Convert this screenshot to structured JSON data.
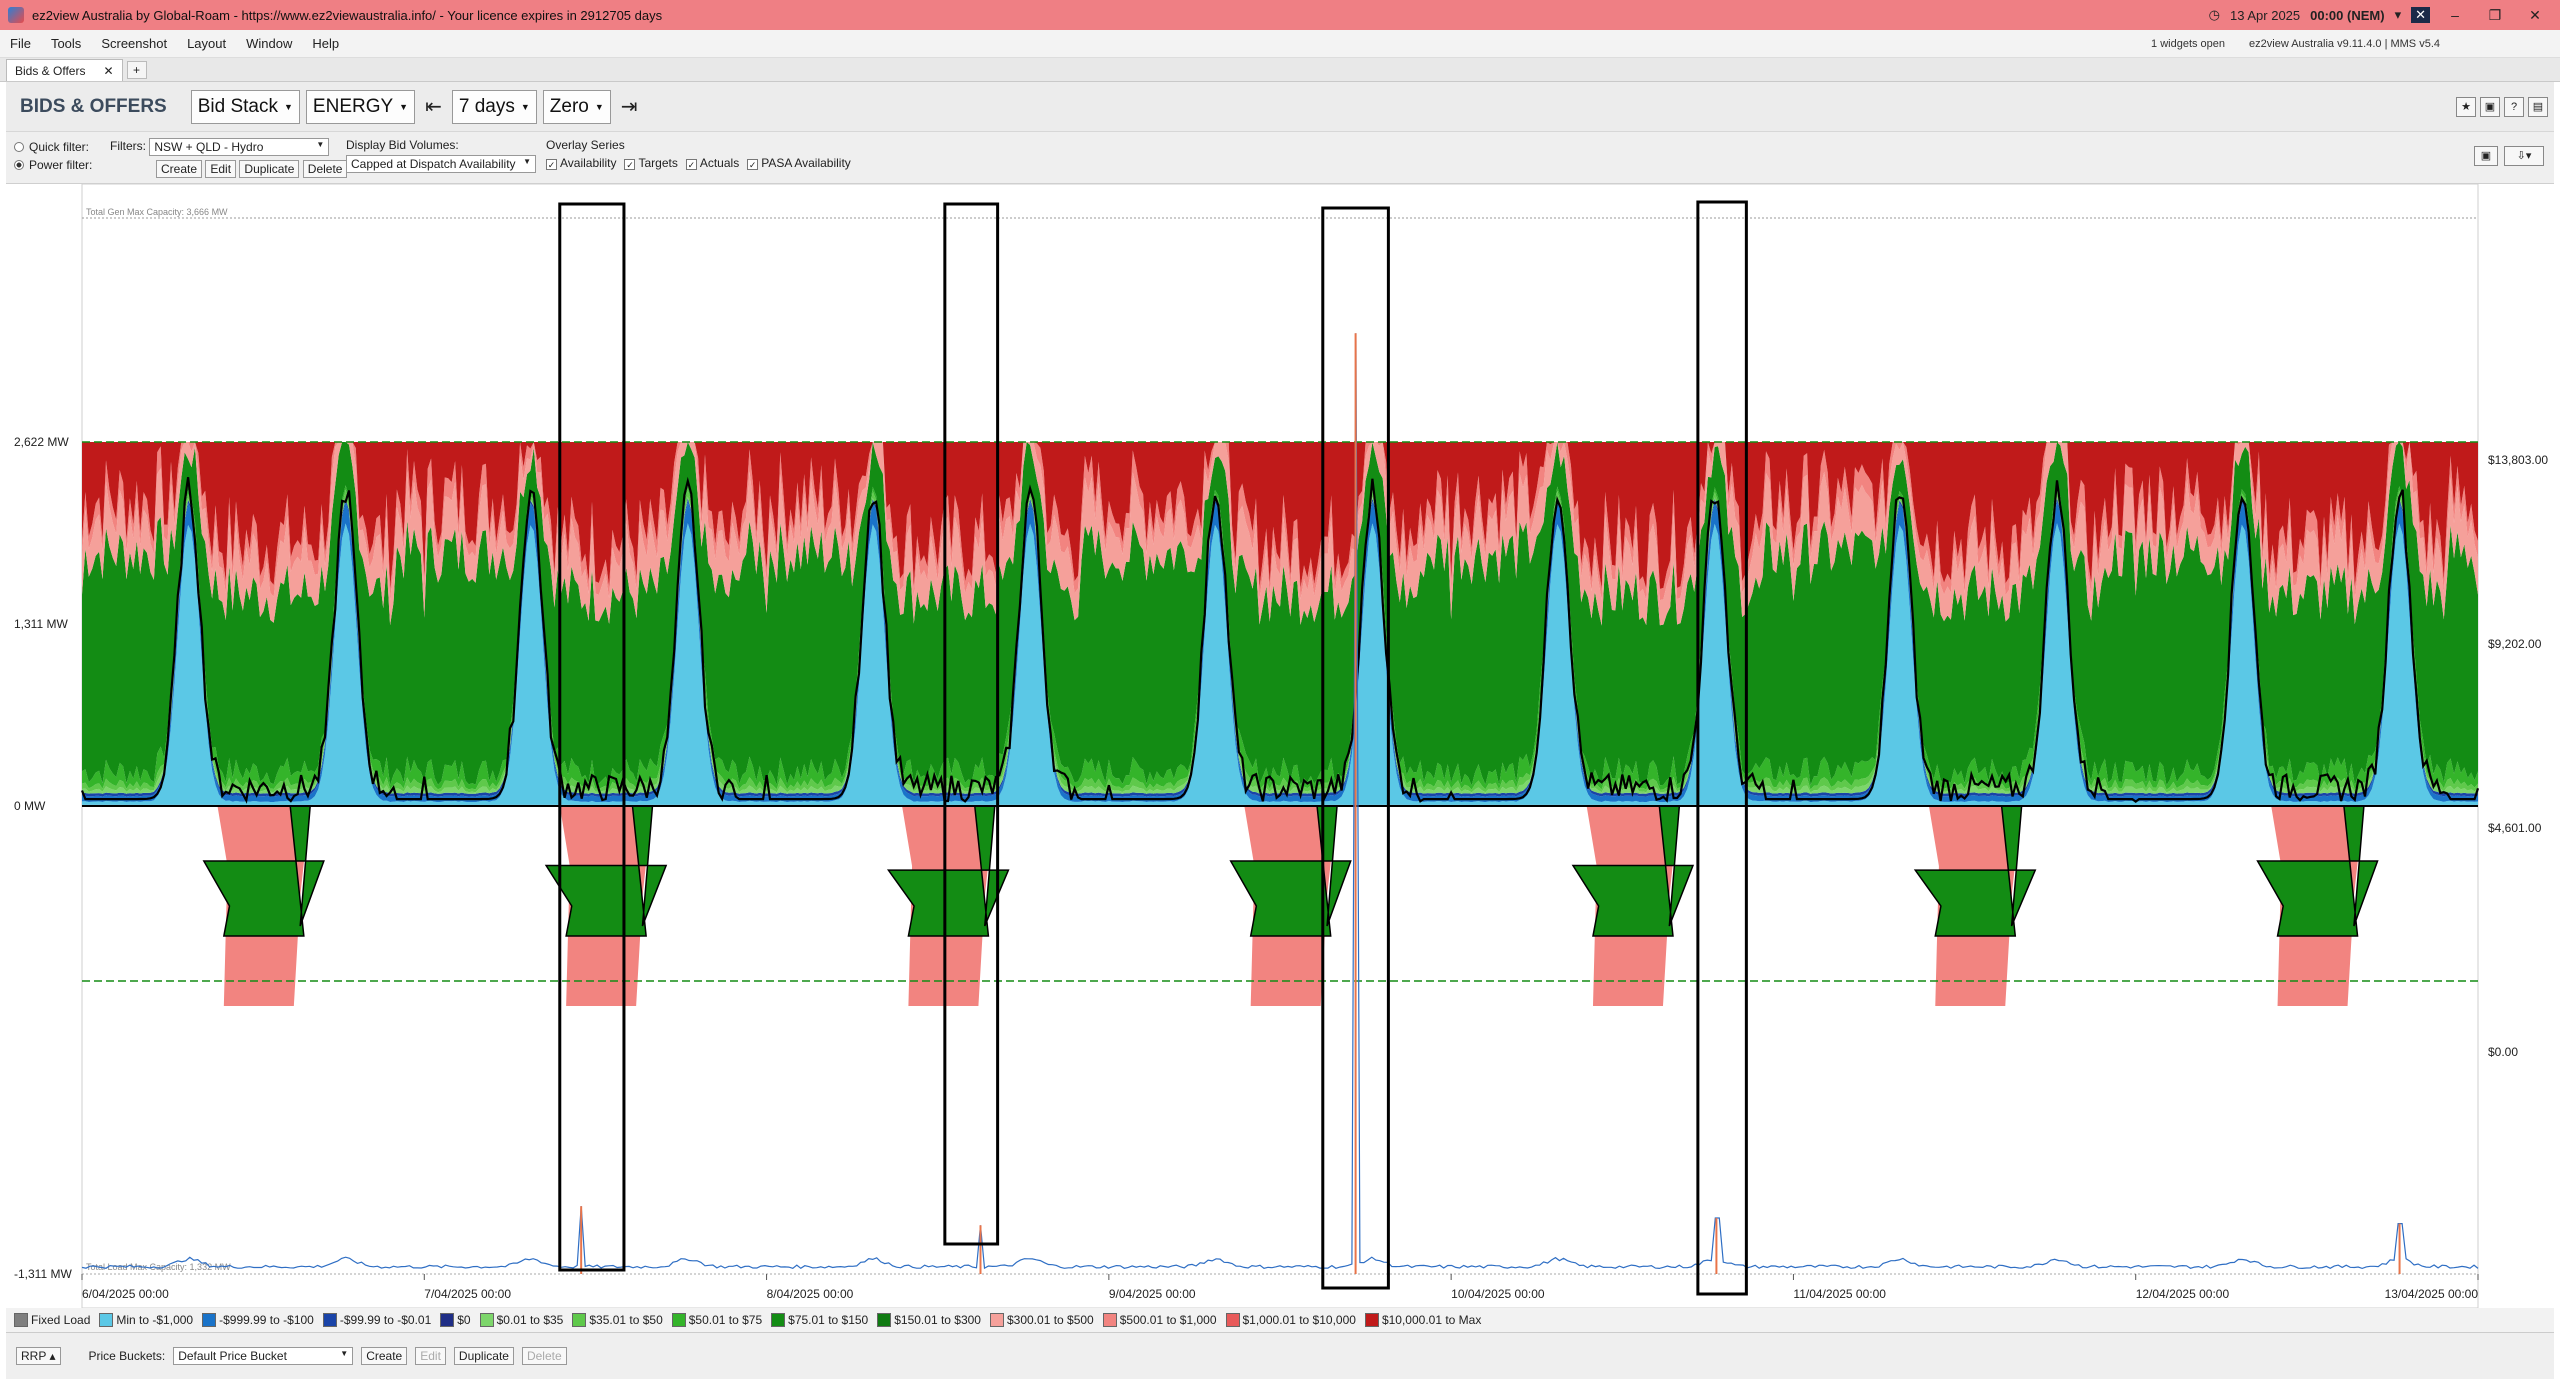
{
  "window": {
    "title": "ez2view Australia by Global-Roam - https://www.ez2viewaustralia.info/ - Your licence expires in 2912705 days",
    "clock_date": "13 Apr 2025",
    "clock_time": "00:00 (NEM)",
    "minimize": "–",
    "maximize": "❐",
    "close": "✕"
  },
  "menu": {
    "items": [
      "File",
      "Tools",
      "Screenshot",
      "Layout",
      "Window",
      "Help"
    ],
    "widgets_open": "1 widgets open",
    "version": "ez2view Australia v9.11.4.0 | MMS v5.4"
  },
  "tabs": {
    "active": "Bids & Offers",
    "add": "+",
    "close": "✕"
  },
  "toolbar": {
    "title": "BIDS & OFFERS",
    "view": "Bid Stack",
    "market": "ENERGY",
    "range": "7 days",
    "baseline": "Zero",
    "prev_glyph": "⇤",
    "next_glyph": "⇥"
  },
  "filters": {
    "quick_filter": "Quick filter:",
    "power_filter": "Power filter:",
    "filters_label": "Filters:",
    "filter_value": "NSW + QLD - Hydro",
    "create": "Create",
    "edit": "Edit",
    "duplicate": "Duplicate",
    "delete": "Delete",
    "display_label": "Display Bid Volumes:",
    "display_value": "Capped at Dispatch Availability",
    "overlay_label": "Overlay Series",
    "overlay": [
      "Availability",
      "Targets",
      "Actuals",
      "PASA Availability"
    ]
  },
  "colors": {
    "fixed": "#7f7f7f",
    "min_1000": "#5bc8e6",
    "n999": "#1a73c9",
    "n99": "#1a44a8",
    "zero": "#1f2e86",
    "p35": "#7dd66b",
    "p50": "#5fc94b",
    "p75": "#34b42a",
    "p150": "#138c14",
    "p300": "#0f7a12",
    "p500": "#f5a09a",
    "p1000": "#f28480",
    "p10000": "#e85a5a",
    "max": "#c01a1a",
    "actual": "#000000",
    "rrp": "#2e6ec4"
  },
  "chart_data": {
    "type": "area",
    "y_left_ticks": [
      "2,622 MW",
      "1,311 MW",
      "0 MW",
      "-1,311 MW"
    ],
    "y_right_ticks": [
      "$13,803.00",
      "$9,202.00",
      "$4,601.00",
      "$0.00"
    ],
    "x_ticks": [
      "6/04/2025 00:00",
      "7/04/2025 00:00",
      "8/04/2025 00:00",
      "9/04/2025 00:00",
      "10/04/2025 00:00",
      "11/04/2025 00:00",
      "12/04/2025 00:00",
      "13/04/2025 00:00"
    ],
    "total_gen_label": "Total Gen Max Capacity: 3,666 MW",
    "total_load_label": "Total Load Max Capacity: 1,332 MW",
    "ylim_mw": [
      -1311,
      3800
    ],
    "ylim_price": [
      0,
      17800
    ],
    "days": 7,
    "availability_mw": 2622,
    "daily_peak_hours": [
      14.2,
      6.8,
      7.7,
      18.2,
      7.8,
      7.5,
      18.4,
      7.6,
      16.6,
      7.4,
      19.9
    ],
    "highlight_windows_hours": [
      [
        33.5,
        38.0
      ],
      [
        60.5,
        64.2
      ],
      [
        87.0,
        91.6
      ],
      [
        113.3,
        116.7
      ]
    ],
    "price_spikes": [
      {
        "hour": 35.0,
        "price": 1210
      },
      {
        "hour": 63.0,
        "price": 870
      },
      {
        "hour": 89.3,
        "price": 16800
      },
      {
        "hour": 114.6,
        "price": 1000
      },
      {
        "hour": 162.5,
        "price": 900
      }
    ]
  },
  "legend": [
    {
      "label": "Fixed Load",
      "color_key": "fixed"
    },
    {
      "label": "Min to -$1,000",
      "color_key": "min_1000"
    },
    {
      "label": "-$999.99 to -$100",
      "color_key": "n999"
    },
    {
      "label": "-$99.99 to -$0.01",
      "color_key": "n99"
    },
    {
      "label": "$0",
      "color_key": "zero"
    },
    {
      "label": "$0.01 to $35",
      "color_key": "p35"
    },
    {
      "label": "$35.01 to $50",
      "color_key": "p50"
    },
    {
      "label": "$50.01 to $75",
      "color_key": "p75"
    },
    {
      "label": "$75.01 to $150",
      "color_key": "p150"
    },
    {
      "label": "$150.01 to $300",
      "color_key": "p300"
    },
    {
      "label": "$300.01 to $500",
      "color_key": "p500"
    },
    {
      "label": "$500.01 to $1,000",
      "color_key": "p1000"
    },
    {
      "label": "$1,000.01 to $10,000",
      "color_key": "p10000"
    },
    {
      "label": "$10,000.01 to Max",
      "color_key": "max"
    }
  ],
  "bottom": {
    "rrp": "RRP",
    "price_buckets_label": "Price Buckets:",
    "price_bucket": "Default Price Bucket",
    "create": "Create",
    "edit": "Edit",
    "duplicate": "Duplicate",
    "delete": "Delete"
  }
}
